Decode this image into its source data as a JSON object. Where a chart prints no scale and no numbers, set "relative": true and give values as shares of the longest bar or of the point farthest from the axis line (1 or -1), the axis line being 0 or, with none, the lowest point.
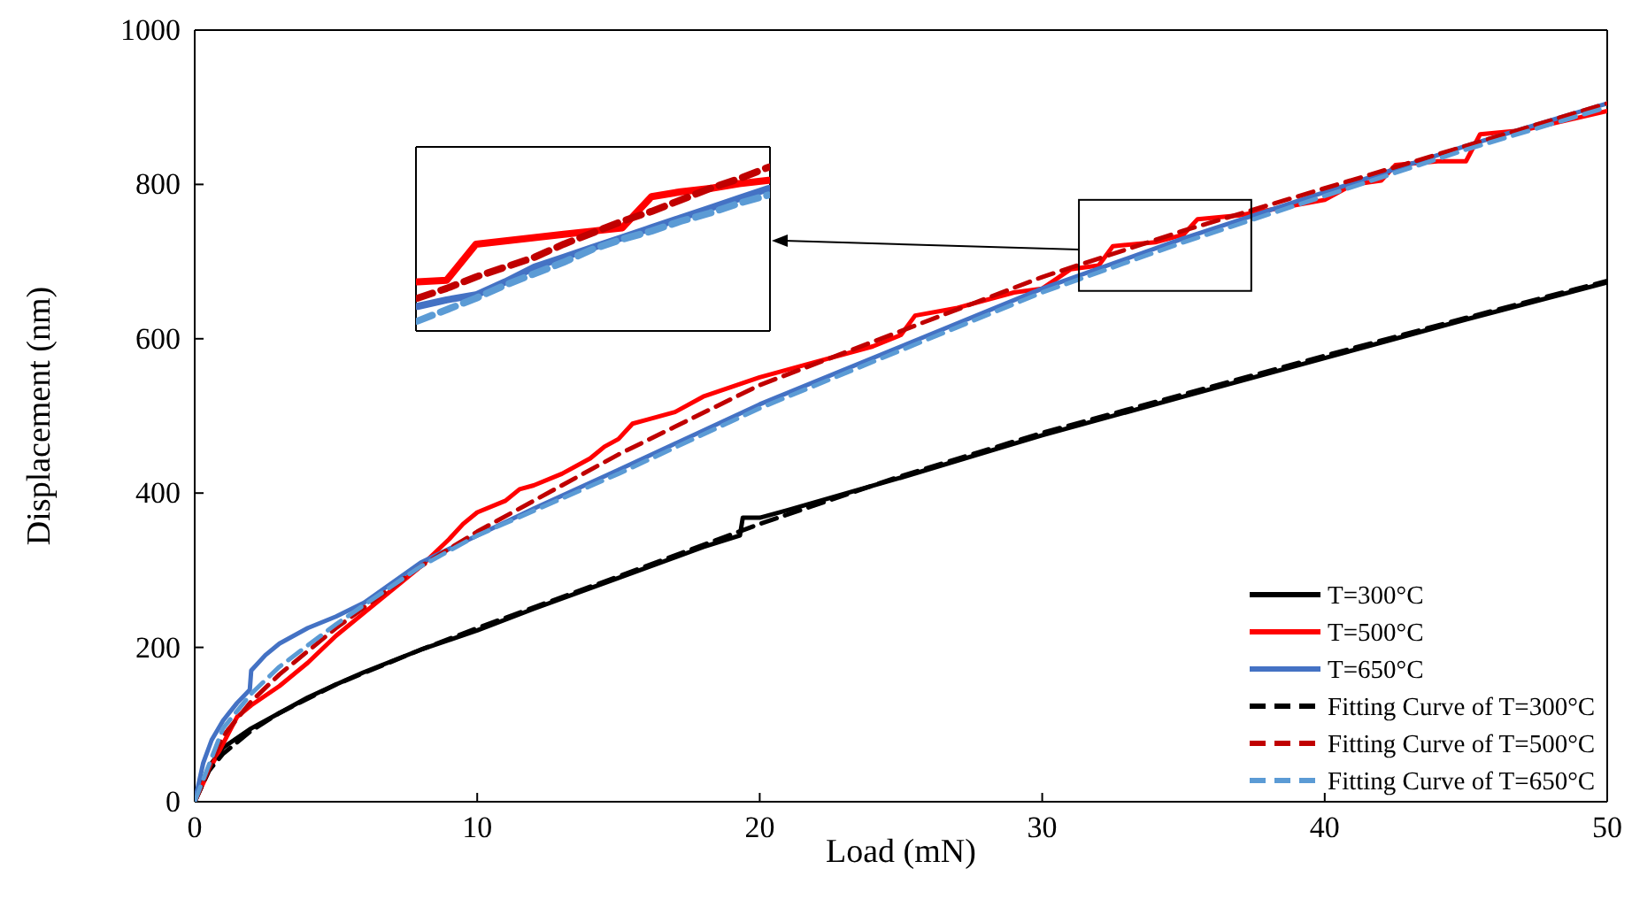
{
  "chart_data": [
    {
      "type": "line",
      "xlabel": "Load (mN)",
      "ylabel": "Displacement (nm)",
      "xlim": [
        0,
        50
      ],
      "ylim": [
        0,
        1000
      ],
      "xticks": [
        0,
        10,
        20,
        30,
        40,
        50
      ],
      "yticks": [
        0,
        200,
        400,
        600,
        800,
        1000
      ],
      "grid": false,
      "legend": "bottom right",
      "marker": "none",
      "series": [
        {
          "name": "T=300°C",
          "color": "#000000",
          "line_style": "solid",
          "x": [
            0,
            0.5,
            1,
            2,
            3,
            4,
            5,
            6,
            8,
            10,
            12,
            15,
            18,
            19.3,
            19.4,
            20,
            21,
            25,
            30,
            35,
            40,
            45,
            50
          ],
          "values": [
            0,
            45,
            70,
            95,
            115,
            135,
            152,
            168,
            197,
            222,
            250,
            290,
            330,
            345,
            368,
            368,
            378,
            420,
            475,
            525,
            575,
            625,
            673
          ]
        },
        {
          "name": "T=500°C",
          "color": "#ff0000",
          "line_style": "solid",
          "x": [
            0,
            0.5,
            1,
            1.5,
            2,
            3,
            4,
            5,
            6,
            7,
            8,
            9,
            9.5,
            10,
            11,
            11.5,
            12,
            13,
            14,
            14.5,
            15,
            15.5,
            16,
            17,
            18,
            20,
            22,
            24,
            25,
            25.5,
            27,
            29,
            30,
            31,
            32,
            32.5,
            34,
            35,
            35.5,
            37,
            40,
            41,
            42,
            42.5,
            44,
            45,
            45.5,
            47,
            50
          ],
          "values": [
            0,
            40,
            75,
            110,
            125,
            150,
            180,
            215,
            245,
            275,
            305,
            340,
            360,
            375,
            390,
            405,
            410,
            425,
            445,
            460,
            470,
            490,
            495,
            505,
            525,
            550,
            570,
            590,
            605,
            630,
            640,
            660,
            665,
            690,
            695,
            720,
            725,
            735,
            755,
            760,
            780,
            800,
            805,
            825,
            830,
            830,
            865,
            870,
            895
          ]
        },
        {
          "name": "T=650°C",
          "color": "#4472c4",
          "line_style": "solid",
          "x": [
            0,
            0.3,
            0.6,
            1,
            1.5,
            1.95,
            2,
            2.5,
            3,
            4,
            5,
            6,
            8,
            10,
            12,
            15,
            20,
            25,
            30,
            35,
            40,
            45,
            50
          ],
          "values": [
            0,
            50,
            80,
            105,
            128,
            145,
            170,
            190,
            205,
            225,
            240,
            258,
            310,
            345,
            380,
            430,
            515,
            590,
            665,
            730,
            790,
            850,
            905
          ]
        },
        {
          "name": "Fitting Curve of T=300°C",
          "color": "#000000",
          "line_style": "dashed",
          "x": [
            0,
            0.5,
            1,
            2,
            3,
            5,
            8,
            10,
            15,
            20,
            25,
            30,
            35,
            40,
            45,
            50
          ],
          "values": [
            0,
            40,
            62,
            92,
            115,
            152,
            197,
            225,
            292,
            360,
            422,
            478,
            528,
            578,
            627,
            675
          ]
        },
        {
          "name": "Fitting Curve of T=500°C",
          "color": "#c00000",
          "line_style": "dashed",
          "x": [
            0,
            1,
            2,
            3,
            5,
            8,
            10,
            15,
            20,
            25,
            30,
            35,
            40,
            45,
            50
          ],
          "values": [
            0,
            85,
            130,
            165,
            225,
            305,
            350,
            450,
            540,
            610,
            680,
            740,
            795,
            850,
            905
          ]
        },
        {
          "name": "Fitting Curve of T=650°C",
          "color": "#5b9bd5",
          "line_style": "dashed",
          "x": [
            0,
            1,
            2,
            3,
            5,
            8,
            10,
            15,
            20,
            25,
            30,
            35,
            40,
            45,
            50
          ],
          "values": [
            0,
            95,
            140,
            175,
            230,
            305,
            345,
            425,
            510,
            585,
            660,
            725,
            785,
            845,
            900
          ]
        }
      ]
    },
    {
      "type": "line",
      "relative": true,
      "marker": "none",
      "categories": [
        null,
        null,
        null,
        null,
        null,
        null,
        null,
        null,
        null,
        null,
        null,
        null,
        null
      ],
      "series": [
        {
          "color": "#ff0000",
          "line_style": "solid",
          "values": [
            0.3,
            0.31,
            0.53,
            0.55,
            0.57,
            0.59,
            0.61,
            0.63,
            0.82,
            0.85,
            0.87,
            0.9,
            0.92
          ]
        },
        {
          "color": "#4472c4",
          "line_style": "solid",
          "values": [
            0.15,
            0.19,
            0.22,
            0.3,
            0.39,
            0.45,
            0.51,
            0.57,
            0.63,
            0.69,
            0.75,
            0.81,
            0.87
          ]
        },
        {
          "color": "#c00000",
          "line_style": "dashed",
          "values": [
            0.2,
            0.26,
            0.33,
            0.39,
            0.45,
            0.53,
            0.6,
            0.67,
            0.73,
            0.8,
            0.87,
            0.93,
            1
          ]
        },
        {
          "color": "#5b9bd5",
          "line_style": "dashed",
          "values": [
            0.06,
            0.13,
            0.2,
            0.28,
            0.35,
            0.42,
            0.5,
            0.56,
            0.61,
            0.67,
            0.72,
            0.78,
            0.83
          ]
        }
      ]
    }
  ]
}
